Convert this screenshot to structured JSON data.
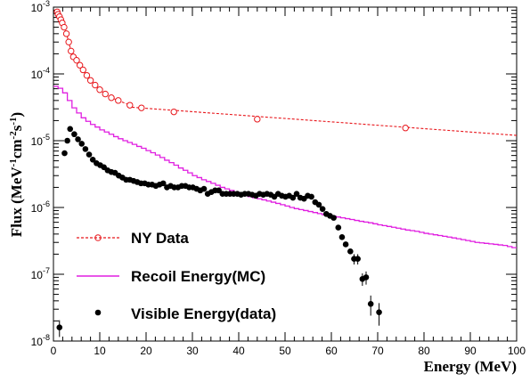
{
  "chart_data": {
    "type": "scatter",
    "xlabel": "Energy (MeV)",
    "ylabel_parts": [
      "Flux (MeV",
      "-1",
      "cm",
      "-2",
      "s",
      "-1",
      ")"
    ],
    "xlim": [
      0,
      100
    ],
    "ylim": [
      1e-08,
      0.001
    ],
    "y_scale": "log",
    "x_ticks": [
      0,
      10,
      20,
      30,
      40,
      50,
      60,
      70,
      80,
      90,
      100
    ],
    "y_tick_labels": [
      {
        "value": 0.001,
        "base": "10",
        "exp": "-3"
      },
      {
        "value": 0.0001,
        "base": "10",
        "exp": "-4"
      },
      {
        "value": 1e-05,
        "base": "10",
        "exp": "-5"
      },
      {
        "value": 1e-06,
        "base": "10",
        "exp": "-6"
      },
      {
        "value": 1e-07,
        "base": "10",
        "exp": "-7"
      },
      {
        "value": 1e-08,
        "base": "10",
        "exp": "-8"
      }
    ],
    "legend_position": "bottom-left",
    "series": [
      {
        "name": "NY Data",
        "style": "dashed-line-open-circles",
        "color": "#e8161b",
        "points": [
          [
            0.8,
            0.00085
          ],
          [
            1.0,
            0.00078
          ],
          [
            1.3,
            0.00072
          ],
          [
            1.6,
            0.00065
          ],
          [
            1.9,
            0.00058
          ],
          [
            2.3,
            0.0005
          ],
          [
            2.8,
            0.0004
          ],
          [
            3.3,
            0.0003
          ],
          [
            3.8,
            0.00022
          ],
          [
            4.3,
            0.00018
          ],
          [
            5.0,
            0.00016
          ],
          [
            5.7,
            0.000135
          ],
          [
            6.4,
            0.000115
          ],
          [
            7.2,
            9.5e-05
          ],
          [
            8.0,
            8e-05
          ],
          [
            9.0,
            6.8e-05
          ],
          [
            10.0,
            5.8e-05
          ],
          [
            11.2,
            5e-05
          ],
          [
            12.5,
            4.4e-05
          ],
          [
            14.0,
            4e-05
          ],
          [
            16.5,
            3.4e-05
          ],
          [
            19.0,
            3.1e-05
          ],
          [
            26.0,
            2.7e-05
          ],
          [
            44.0,
            2.1e-05
          ],
          [
            76.0,
            1.55e-05
          ]
        ],
        "fit_line": [
          [
            16,
            3.2e-05
          ],
          [
            100,
            1.2e-05
          ]
        ]
      },
      {
        "name": "Recoil Energy(MC)",
        "style": "step",
        "color": "#e01fe0",
        "points": [
          [
            0,
            6.5e-05
          ],
          [
            1,
            6.1e-05
          ],
          [
            2,
            5.2e-05
          ],
          [
            3,
            4e-05
          ],
          [
            4,
            3.1e-05
          ],
          [
            5,
            2.6e-05
          ],
          [
            6,
            2.2e-05
          ],
          [
            7,
            1.95e-05
          ],
          [
            8,
            1.75e-05
          ],
          [
            9,
            1.6e-05
          ],
          [
            10,
            1.45e-05
          ],
          [
            11,
            1.35e-05
          ],
          [
            12,
            1.25e-05
          ],
          [
            13,
            1.15e-05
          ],
          [
            14,
            1.07e-05
          ],
          [
            15,
            1e-05
          ],
          [
            16,
            9.4e-06
          ],
          [
            17,
            8.8e-06
          ],
          [
            18,
            8.2e-06
          ],
          [
            19,
            7.7e-06
          ],
          [
            20,
            7.1e-06
          ],
          [
            21,
            6.6e-06
          ],
          [
            22,
            6.1e-06
          ],
          [
            23,
            5.6e-06
          ],
          [
            24,
            5.1e-06
          ],
          [
            25,
            4.7e-06
          ],
          [
            26,
            4.3e-06
          ],
          [
            27,
            3.9e-06
          ],
          [
            28,
            3.6e-06
          ],
          [
            29,
            3.3e-06
          ],
          [
            30,
            3e-06
          ],
          [
            31,
            2.8e-06
          ],
          [
            32,
            2.6e-06
          ],
          [
            33,
            2.45e-06
          ],
          [
            34,
            2.3e-06
          ],
          [
            35,
            2.15e-06
          ],
          [
            36,
            2e-06
          ],
          [
            37,
            1.9e-06
          ],
          [
            38,
            1.8e-06
          ],
          [
            39,
            1.7e-06
          ],
          [
            40,
            1.6e-06
          ],
          [
            41,
            1.5e-06
          ],
          [
            42,
            1.45e-06
          ],
          [
            43,
            1.4e-06
          ],
          [
            44,
            1.35e-06
          ],
          [
            45,
            1.3e-06
          ],
          [
            46,
            1.25e-06
          ],
          [
            47,
            1.2e-06
          ],
          [
            48,
            1.15e-06
          ],
          [
            49,
            1.1e-06
          ],
          [
            50,
            1.05e-06
          ],
          [
            51,
            1e-06
          ],
          [
            52,
            9.6e-07
          ],
          [
            53,
            9.3e-07
          ],
          [
            54,
            9e-07
          ],
          [
            55,
            8.7e-07
          ],
          [
            56,
            8.4e-07
          ],
          [
            57,
            8.1e-07
          ],
          [
            58,
            7.8e-07
          ],
          [
            59,
            7.6e-07
          ],
          [
            60,
            7.4e-07
          ],
          [
            61,
            7.2e-07
          ],
          [
            62,
            7e-07
          ],
          [
            63,
            6.8e-07
          ],
          [
            64,
            6.6e-07
          ],
          [
            65,
            6.4e-07
          ],
          [
            66,
            6.2e-07
          ],
          [
            67,
            6.05e-07
          ],
          [
            68,
            5.9e-07
          ],
          [
            69,
            5.7e-07
          ],
          [
            70,
            5.5e-07
          ],
          [
            71,
            5.35e-07
          ],
          [
            72,
            5.2e-07
          ],
          [
            73,
            5.05e-07
          ],
          [
            74,
            4.9e-07
          ],
          [
            75,
            4.75e-07
          ],
          [
            76,
            4.6e-07
          ],
          [
            77,
            4.5e-07
          ],
          [
            78,
            4.4e-07
          ],
          [
            79,
            4.25e-07
          ],
          [
            80,
            4.1e-07
          ],
          [
            81,
            4e-07
          ],
          [
            82,
            3.9e-07
          ],
          [
            83,
            3.8e-07
          ],
          [
            84,
            3.7e-07
          ],
          [
            85,
            3.6e-07
          ],
          [
            86,
            3.5e-07
          ],
          [
            87,
            3.4e-07
          ],
          [
            88,
            3.3e-07
          ],
          [
            89,
            3.2e-07
          ],
          [
            90,
            3.1e-07
          ],
          [
            91,
            3e-07
          ],
          [
            92,
            2.95e-07
          ],
          [
            93,
            2.9e-07
          ],
          [
            94,
            2.85e-07
          ],
          [
            95,
            2.8e-07
          ],
          [
            96,
            2.75e-07
          ],
          [
            97,
            2.7e-07
          ],
          [
            98,
            2.6e-07
          ],
          [
            99,
            2.5e-07
          ],
          [
            100,
            2.5e-07
          ]
        ]
      },
      {
        "name": "Visible Energy(data)",
        "style": "filled-points-with-error-bars",
        "color": "#000000",
        "points": [
          [
            1.3,
            1.6e-08,
            4.5e-09
          ],
          [
            2.4,
            6.5e-06,
            0
          ],
          [
            3.0,
            1e-05,
            0
          ],
          [
            3.6,
            1.5e-05,
            0
          ],
          [
            4.5,
            1.25e-05,
            0
          ],
          [
            5.3,
            1.05e-05,
            0
          ],
          [
            6.1,
            9e-06,
            0
          ],
          [
            6.9,
            7.5e-06,
            0
          ],
          [
            7.7,
            6.2e-06,
            0
          ],
          [
            8.5,
            5.2e-06,
            0
          ],
          [
            9.3,
            4.6e-06,
            0
          ],
          [
            10.1,
            4.3e-06,
            0
          ],
          [
            10.9,
            4e-06,
            0
          ],
          [
            11.7,
            3.6e-06,
            0
          ],
          [
            12.5,
            3.4e-06,
            0
          ],
          [
            13.3,
            3.3e-06,
            0
          ],
          [
            14.1,
            3e-06,
            0
          ],
          [
            14.9,
            2.8e-06,
            0
          ],
          [
            15.7,
            2.6e-06,
            0
          ],
          [
            16.5,
            2.6e-06,
            0
          ],
          [
            17.3,
            2.5e-06,
            0
          ],
          [
            18.1,
            2.4e-06,
            0
          ],
          [
            18.9,
            2.3e-06,
            0
          ],
          [
            19.7,
            2.3e-06,
            0
          ],
          [
            20.5,
            2.2e-06,
            0
          ],
          [
            21.3,
            2.2e-06,
            0
          ],
          [
            22.1,
            2.1e-06,
            0
          ],
          [
            22.9,
            2.2e-06,
            0
          ],
          [
            23.7,
            2.3e-06,
            0
          ],
          [
            24.5,
            2e-06,
            0
          ],
          [
            25.3,
            2.1e-06,
            0
          ],
          [
            26.1,
            2e-06,
            0
          ],
          [
            26.9,
            2e-06,
            0
          ],
          [
            27.7,
            2.1e-06,
            0
          ],
          [
            28.5,
            2.1e-06,
            0
          ],
          [
            29.3,
            2e-06,
            0
          ],
          [
            30.1,
            2e-06,
            0
          ],
          [
            30.9,
            1.9e-06,
            0
          ],
          [
            31.7,
            1.8e-06,
            0
          ],
          [
            32.5,
            1.9e-06,
            0
          ],
          [
            33.3,
            1.6e-06,
            0
          ],
          [
            34.1,
            1.7e-06,
            0
          ],
          [
            34.9,
            1.8e-06,
            0
          ],
          [
            35.7,
            1.8e-06,
            0
          ],
          [
            36.5,
            1.6e-06,
            0
          ],
          [
            37.3,
            1.6e-06,
            0
          ],
          [
            38.1,
            1.6e-06,
            0
          ],
          [
            38.9,
            1.6e-06,
            0
          ],
          [
            39.7,
            1.6e-06,
            0
          ],
          [
            40.5,
            1.55e-06,
            0
          ],
          [
            41.3,
            1.6e-06,
            0
          ],
          [
            42.1,
            1.6e-06,
            0
          ],
          [
            42.9,
            1.55e-06,
            0
          ],
          [
            43.7,
            1.5e-06,
            0
          ],
          [
            44.5,
            1.6e-06,
            0
          ],
          [
            45.3,
            1.55e-06,
            0
          ],
          [
            46.1,
            1.6e-06,
            0
          ],
          [
            46.9,
            1.55e-06,
            0
          ],
          [
            47.7,
            1.45e-06,
            0
          ],
          [
            48.5,
            1.6e-06,
            0
          ],
          [
            49.3,
            1.5e-06,
            0
          ],
          [
            50.1,
            1.45e-06,
            0
          ],
          [
            50.9,
            1.5e-06,
            0
          ],
          [
            51.7,
            1.4e-06,
            0
          ],
          [
            52.5,
            1.6e-06,
            0
          ],
          [
            53.3,
            1.4e-06,
            0
          ],
          [
            54.1,
            1.35e-06,
            0
          ],
          [
            54.9,
            1.5e-06,
            0
          ],
          [
            55.7,
            1.45e-06,
            0
          ],
          [
            56.5,
            1.2e-06,
            0
          ],
          [
            57.3,
            1.1e-06,
            0
          ],
          [
            58.1,
            9.5e-07,
            0
          ],
          [
            58.9,
            8e-07,
            0
          ],
          [
            59.7,
            7.5e-07,
            0
          ],
          [
            60.5,
            7e-07,
            0
          ],
          [
            61.5,
            5e-07,
            0
          ],
          [
            62.3,
            3.6e-07,
            0
          ],
          [
            63.1,
            2.8e-07,
            0
          ],
          [
            64.1,
            2.2e-07,
            0
          ],
          [
            64.9,
            1.7e-07,
            3e-08
          ],
          [
            65.7,
            1.7e-07,
            3e-08
          ],
          [
            66.7,
            8.5e-08,
            1.8e-08
          ],
          [
            67.5,
            9e-08,
            2e-08
          ],
          [
            68.5,
            3.6e-08,
            1.2e-08
          ],
          [
            70.3,
            2.7e-08,
            1e-08
          ]
        ]
      }
    ]
  }
}
